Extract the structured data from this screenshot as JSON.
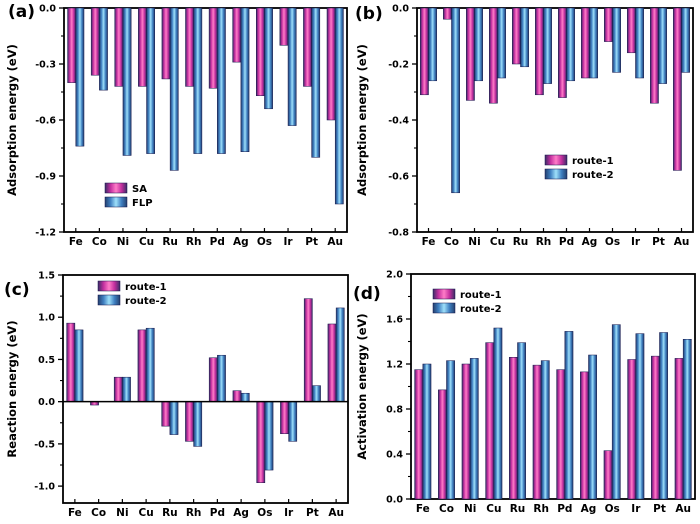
{
  "figure": {
    "background": "#ffffff",
    "panels": [
      {
        "label": "(a)"
      },
      {
        "label": "(b)"
      },
      {
        "label": "(c)"
      },
      {
        "label": "(d)"
      }
    ]
  },
  "colors": {
    "axis": "#000000",
    "text": "#000000",
    "bar_outline": "#14144a",
    "pink_edge": "#3A2C66",
    "pink_mid": "#C42F9F",
    "pink_center": "#FF7CC8",
    "blue_edge": "#24406E",
    "blue_mid": "#3F7FC1",
    "blue_center": "#9EE0FA"
  },
  "chart_data": [
    {
      "type": "bar",
      "panel": "a",
      "title": "",
      "xlabel": "",
      "ylabel": "Adsorption energy (eV)",
      "categories": [
        "Fe",
        "Co",
        "Ni",
        "Cu",
        "Ru",
        "Rh",
        "Pd",
        "Ag",
        "Os",
        "Ir",
        "Pt",
        "Au"
      ],
      "series": [
        {
          "name": "SA",
          "color": "pink",
          "values": [
            -0.4,
            -0.36,
            -0.42,
            -0.42,
            -0.38,
            -0.42,
            -0.43,
            -0.29,
            -0.47,
            -0.2,
            -0.42,
            -0.6
          ]
        },
        {
          "name": "FLP",
          "color": "blue",
          "values": [
            -0.74,
            -0.44,
            -0.79,
            -0.78,
            -0.87,
            -0.78,
            -0.78,
            -0.77,
            -0.54,
            -0.63,
            -0.8,
            -1.05
          ]
        }
      ],
      "ylim": [
        -1.2,
        0.0
      ],
      "ytick_values": [
        0.0,
        -0.3,
        -0.6,
        -0.9,
        -1.2
      ],
      "ytick_labels": [
        "0.0",
        "-0.3",
        "-0.6",
        "-0.9",
        "-1.2"
      ],
      "grid": false,
      "legend_position": "inside-bottom-left"
    },
    {
      "type": "bar",
      "panel": "b",
      "title": "",
      "xlabel": "",
      "ylabel": "Adsorption energy (eV)",
      "categories": [
        "Fe",
        "Co",
        "Ni",
        "Cu",
        "Ru",
        "Rh",
        "Pd",
        "Ag",
        "Os",
        "Ir",
        "Pt",
        "Au"
      ],
      "series": [
        {
          "name": "route-1",
          "color": "pink",
          "values": [
            -0.31,
            -0.04,
            -0.33,
            -0.34,
            -0.2,
            -0.31,
            -0.32,
            -0.25,
            -0.12,
            -0.16,
            -0.34,
            -0.58
          ]
        },
        {
          "name": "route-2",
          "color": "blue",
          "values": [
            -0.26,
            -0.66,
            -0.26,
            -0.25,
            -0.21,
            -0.27,
            -0.26,
            -0.25,
            -0.23,
            -0.25,
            -0.27,
            -0.23
          ]
        }
      ],
      "ylim": [
        -0.8,
        0.0
      ],
      "ytick_values": [
        0.0,
        -0.2,
        -0.4,
        -0.6,
        -0.8
      ],
      "ytick_labels": [
        "0.0",
        "-0.2",
        "-0.4",
        "-0.6",
        "-0.8"
      ],
      "grid": false,
      "legend_position": "inside-middle-right"
    },
    {
      "type": "bar",
      "panel": "c",
      "title": "",
      "xlabel": "",
      "ylabel": "Reaction energy (eV)",
      "categories": [
        "Fe",
        "Co",
        "Ni",
        "Cu",
        "Ru",
        "Rh",
        "Pd",
        "Ag",
        "Os",
        "Ir",
        "Pt",
        "Au"
      ],
      "series": [
        {
          "name": "route-1",
          "color": "pink",
          "values": [
            0.93,
            -0.04,
            0.29,
            0.85,
            -0.29,
            -0.47,
            0.52,
            0.13,
            -0.96,
            -0.38,
            1.22,
            0.92
          ]
        },
        {
          "name": "route-2",
          "color": "blue",
          "values": [
            0.85,
            0.0,
            0.29,
            0.87,
            -0.39,
            -0.53,
            0.55,
            0.1,
            -0.81,
            -0.47,
            0.19,
            1.11
          ]
        }
      ],
      "ylim": [
        -1.2,
        1.5
      ],
      "ytick_values": [
        1.5,
        1.0,
        0.5,
        0.0,
        -0.5,
        -1.0
      ],
      "ytick_labels": [
        "1.5",
        "1.0",
        "0.5",
        "0.0",
        "-0.5",
        "-1.0"
      ],
      "grid": false,
      "legend_position": "inside-top-left"
    },
    {
      "type": "bar",
      "panel": "d",
      "title": "",
      "xlabel": "",
      "ylabel": "Activation energy (eV)",
      "categories": [
        "Fe",
        "Co",
        "Ni",
        "Cu",
        "Ru",
        "Rh",
        "Pd",
        "Ag",
        "Os",
        "Ir",
        "Pt",
        "Au"
      ],
      "series": [
        {
          "name": "route-1",
          "color": "pink",
          "values": [
            1.15,
            0.97,
            1.2,
            1.39,
            1.26,
            1.19,
            1.15,
            1.13,
            0.43,
            1.24,
            1.27,
            1.25
          ]
        },
        {
          "name": "route-2",
          "color": "blue",
          "values": [
            1.2,
            1.23,
            1.25,
            1.52,
            1.39,
            1.23,
            1.49,
            1.28,
            1.55,
            1.47,
            1.48,
            1.42
          ]
        }
      ],
      "ylim": [
        0.0,
        2.0
      ],
      "ytick_values": [
        2.0,
        1.6,
        1.2,
        0.8,
        0.4,
        0.0
      ],
      "ytick_labels": [
        "2.0",
        "1.6",
        "1.2",
        "0.8",
        "0.4",
        "0.0"
      ],
      "grid": false,
      "legend_position": "inside-top-left"
    }
  ]
}
